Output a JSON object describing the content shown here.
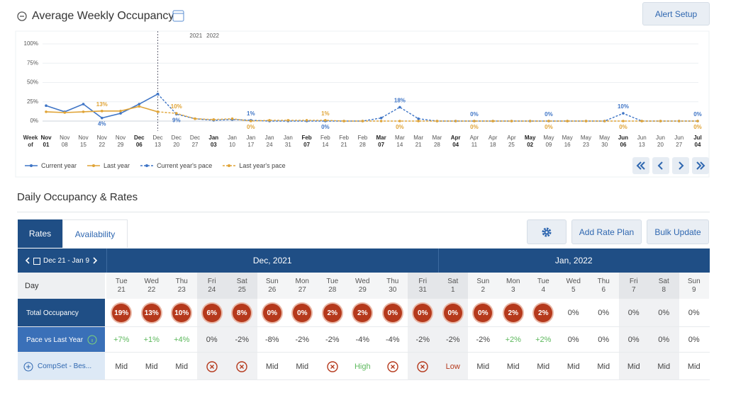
{
  "header": {
    "title": "Average Weekly Occupancy",
    "alert_button": "Alert Setup"
  },
  "chart_data": {
    "type": "line",
    "x_label": "Week of",
    "year_labels": [
      "2021",
      "2022"
    ],
    "categories": [
      "Nov 01",
      "Nov 08",
      "Nov 15",
      "Nov 22",
      "Nov 29",
      "Dec 06",
      "Dec 13",
      "Dec 20",
      "Dec 27",
      "Jan 03",
      "Jan 10",
      "Jan 17",
      "Jan 24",
      "Jan 31",
      "Feb 07",
      "Feb 14",
      "Feb 21",
      "Feb 28",
      "Mar 07",
      "Mar 14",
      "Mar 21",
      "Mar 28",
      "Apr 04",
      "Apr 11",
      "Apr 18",
      "Apr 25",
      "May 02",
      "May 09",
      "May 16",
      "May 23",
      "May 30",
      "Jun 06",
      "Jun 13",
      "Jun 20",
      "Jun 27",
      "Jul 04"
    ],
    "ylim": [
      0,
      100
    ],
    "yticks": [
      {
        "value": 0,
        "label": "0%"
      },
      {
        "value": 25,
        "label": "25%"
      },
      {
        "value": 50,
        "label": "50%"
      },
      {
        "value": 75,
        "label": "75%"
      },
      {
        "value": 100,
        "label": "100%"
      }
    ],
    "grid": true,
    "series": [
      {
        "name": "Current year",
        "color": "#3f75c6",
        "dashed": false,
        "values": [
          20,
          12,
          22,
          4,
          10,
          22,
          35,
          null,
          null,
          null,
          null,
          null,
          null,
          null,
          null,
          null,
          null,
          null,
          null,
          null,
          null,
          null,
          null,
          null,
          null,
          null,
          null,
          null,
          null,
          null,
          null,
          null,
          null,
          null,
          null,
          null
        ],
        "value_labels": [
          null,
          null,
          null,
          "4%",
          null,
          null,
          null,
          null,
          null,
          null,
          null,
          null,
          null,
          null,
          null,
          null,
          null,
          null,
          null,
          null,
          null,
          null,
          null,
          null,
          null,
          null,
          null,
          null,
          null,
          null,
          null,
          null,
          null,
          null,
          null,
          null
        ]
      },
      {
        "name": "Last year",
        "color": "#e0a437",
        "dashed": false,
        "values": [
          12,
          11,
          12,
          13,
          13,
          19,
          12,
          null,
          null,
          null,
          null,
          null,
          null,
          null,
          null,
          null,
          null,
          null,
          null,
          null,
          null,
          null,
          null,
          null,
          null,
          null,
          null,
          null,
          null,
          null,
          null,
          null,
          null,
          null,
          null,
          null
        ],
        "value_labels": [
          null,
          null,
          null,
          "13%",
          null,
          null,
          null,
          null,
          null,
          null,
          null,
          null,
          null,
          null,
          null,
          null,
          null,
          null,
          null,
          null,
          null,
          null,
          null,
          null,
          null,
          null,
          null,
          null,
          null,
          null,
          null,
          null,
          null,
          null,
          null,
          null
        ]
      },
      {
        "name": "Current year's pace",
        "color": "#3f75c6",
        "dashed": true,
        "values": [
          null,
          null,
          null,
          null,
          null,
          null,
          35,
          9,
          3,
          1,
          2,
          1,
          0,
          0,
          0,
          0,
          0,
          0,
          4,
          18,
          3,
          0,
          0,
          0,
          0,
          0,
          0,
          0,
          0,
          0,
          0,
          10,
          0,
          0,
          0,
          0
        ],
        "value_labels": [
          null,
          null,
          null,
          null,
          null,
          null,
          null,
          "9%",
          null,
          null,
          null,
          "1%",
          null,
          null,
          null,
          "0%",
          null,
          null,
          null,
          "18%",
          null,
          null,
          null,
          "0%",
          null,
          null,
          null,
          "0%",
          null,
          null,
          null,
          "10%",
          null,
          null,
          null,
          "0%"
        ]
      },
      {
        "name": "Last year's pace",
        "color": "#e0a437",
        "dashed": true,
        "values": [
          null,
          null,
          null,
          null,
          null,
          null,
          12,
          10,
          3,
          2,
          3,
          0,
          1,
          1,
          1,
          1,
          0,
          0,
          0,
          0,
          0,
          0,
          0,
          0,
          0,
          0,
          0,
          0,
          0,
          0,
          0,
          0,
          0,
          0,
          0,
          0
        ],
        "value_labels": [
          null,
          null,
          null,
          null,
          null,
          null,
          null,
          "10%",
          null,
          null,
          null,
          "0%",
          null,
          null,
          null,
          "1%",
          null,
          null,
          null,
          "0%",
          null,
          null,
          null,
          "0%",
          null,
          null,
          null,
          "0%",
          null,
          null,
          null,
          "0%",
          null,
          null,
          null,
          "0%"
        ]
      }
    ]
  },
  "section": {
    "title": "Daily Occupancy & Rates",
    "tabs": [
      "Rates",
      "Availability"
    ],
    "buttons": [
      "Add Rate Plan",
      "Bulk Update"
    ],
    "date_range": "Dec 21 - Jan 9"
  },
  "table": {
    "months": [
      "Dec, 2021",
      "Jan, 2022"
    ],
    "days": [
      {
        "name": "Tue",
        "date": "21"
      },
      {
        "name": "Wed",
        "date": "22"
      },
      {
        "name": "Thu",
        "date": "23"
      },
      {
        "name": "Fri",
        "date": "24"
      },
      {
        "name": "Sat",
        "date": "25"
      },
      {
        "name": "Sun",
        "date": "26"
      },
      {
        "name": "Mon",
        "date": "27"
      },
      {
        "name": "Tue",
        "date": "28"
      },
      {
        "name": "Wed",
        "date": "29"
      },
      {
        "name": "Thu",
        "date": "30"
      },
      {
        "name": "Fri",
        "date": "31"
      },
      {
        "name": "Sat",
        "date": "1"
      },
      {
        "name": "Sun",
        "date": "2"
      },
      {
        "name": "Mon",
        "date": "3"
      },
      {
        "name": "Tue",
        "date": "4"
      },
      {
        "name": "Wed",
        "date": "5"
      },
      {
        "name": "Thu",
        "date": "6"
      },
      {
        "name": "Fri",
        "date": "7"
      },
      {
        "name": "Sat",
        "date": "8"
      },
      {
        "name": "Sun",
        "date": "9"
      }
    ],
    "day_label": "Day",
    "rows": [
      {
        "label": "Total Occupancy",
        "cells": [
          "19%",
          "13%",
          "10%",
          "6%",
          "8%",
          "0%",
          "0%",
          "2%",
          "2%",
          "0%",
          "0%",
          "0%",
          "0%",
          "2%",
          "2%",
          "0%",
          "0%",
          "0%",
          "0%",
          "0%"
        ],
        "highlighted": [
          true,
          true,
          true,
          true,
          true,
          true,
          true,
          true,
          true,
          true,
          true,
          true,
          true,
          true,
          true,
          false,
          false,
          false,
          false,
          false
        ]
      },
      {
        "label": "Pace vs Last Year",
        "cells": [
          "+7%",
          "+1%",
          "+4%",
          "0%",
          "-2%",
          "-8%",
          "-2%",
          "-2%",
          "-4%",
          "-4%",
          "-2%",
          "-2%",
          "-2%",
          "+2%",
          "+2%",
          "0%",
          "0%",
          "0%",
          "0%",
          "0%"
        ]
      },
      {
        "label": "CompSet - Bes...",
        "cells": [
          "Mid",
          "Mid",
          "Mid",
          null,
          null,
          "Mid",
          "Mid",
          null,
          "High",
          null,
          null,
          "Low",
          "Mid",
          "Mid",
          "Mid",
          "Mid",
          "Mid",
          "Mid",
          "Mid",
          "Mid"
        ]
      }
    ]
  }
}
